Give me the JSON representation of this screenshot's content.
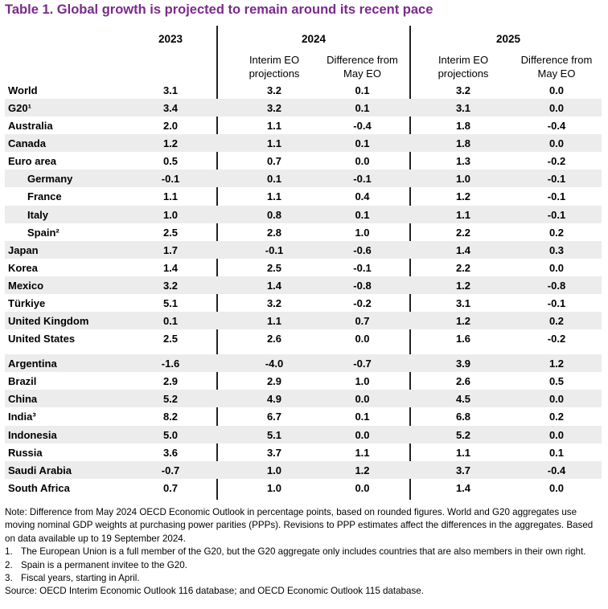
{
  "title": "Table 1. Global growth is projected to remain around its recent pace",
  "headers": {
    "y2023": "2023",
    "y2024": "2024",
    "y2025": "2025",
    "interim_2024": [
      "Interim EO",
      "projections"
    ],
    "diff_2024": [
      "Difference from",
      "May EO"
    ],
    "interim_2025": [
      "Interim EO",
      "projections"
    ],
    "diff_2025": [
      "Difference from",
      "May EO"
    ]
  },
  "rows": [
    {
      "name": "World",
      "v2023": "3.1",
      "i2024": "3.2",
      "d2024": "0.1",
      "i2025": "3.2",
      "d2025": "0.0"
    },
    {
      "name": "G20¹",
      "v2023": "3.4",
      "i2024": "3.2",
      "d2024": "0.1",
      "i2025": "3.1",
      "d2025": "0.0"
    },
    {
      "name": "Australia",
      "v2023": "2.0",
      "i2024": "1.1",
      "d2024": "-0.4",
      "i2025": "1.8",
      "d2025": "-0.4"
    },
    {
      "name": "Canada",
      "v2023": "1.2",
      "i2024": "1.1",
      "d2024": "0.1",
      "i2025": "1.8",
      "d2025": "0.0"
    },
    {
      "name": "Euro area",
      "v2023": "0.5",
      "i2024": "0.7",
      "d2024": "0.0",
      "i2025": "1.3",
      "d2025": "-0.2"
    },
    {
      "name": "Germany",
      "v2023": "-0.1",
      "i2024": "0.1",
      "d2024": "-0.1",
      "i2025": "1.0",
      "d2025": "-0.1"
    },
    {
      "name": "France",
      "v2023": "1.1",
      "i2024": "1.1",
      "d2024": "0.4",
      "i2025": "1.2",
      "d2025": "-0.1"
    },
    {
      "name": "Italy",
      "v2023": "1.0",
      "i2024": "0.8",
      "d2024": "0.1",
      "i2025": "1.1",
      "d2025": "-0.1"
    },
    {
      "name": "Spain²",
      "v2023": "2.5",
      "i2024": "2.8",
      "d2024": "1.0",
      "i2025": "2.2",
      "d2025": "0.2"
    },
    {
      "name": "Japan",
      "v2023": "1.7",
      "i2024": "-0.1",
      "d2024": "-0.6",
      "i2025": "1.4",
      "d2025": "0.3"
    },
    {
      "name": "Korea",
      "v2023": "1.4",
      "i2024": "2.5",
      "d2024": "-0.1",
      "i2025": "2.2",
      "d2025": "0.0"
    },
    {
      "name": "Mexico",
      "v2023": "3.2",
      "i2024": "1.4",
      "d2024": "-0.8",
      "i2025": "1.2",
      "d2025": "-0.8"
    },
    {
      "name": "Türkiye",
      "v2023": "5.1",
      "i2024": "3.2",
      "d2024": "-0.2",
      "i2025": "3.1",
      "d2025": "-0.1"
    },
    {
      "name": "United Kingdom",
      "v2023": "0.1",
      "i2024": "1.1",
      "d2024": "0.7",
      "i2025": "1.2",
      "d2025": "0.2"
    },
    {
      "name": "United States",
      "v2023": "2.5",
      "i2024": "2.6",
      "d2024": "0.0",
      "i2025": "1.6",
      "d2025": "-0.2"
    },
    {
      "name": "Argentina",
      "v2023": "-1.6",
      "i2024": "-4.0",
      "d2024": "-0.7",
      "i2025": "3.9",
      "d2025": "1.2"
    },
    {
      "name": "Brazil",
      "v2023": "2.9",
      "i2024": "2.9",
      "d2024": "1.0",
      "i2025": "2.6",
      "d2025": "0.5"
    },
    {
      "name": "China",
      "v2023": "5.2",
      "i2024": "4.9",
      "d2024": "0.0",
      "i2025": "4.5",
      "d2025": "0.0"
    },
    {
      "name": "India³",
      "v2023": "8.2",
      "i2024": "6.7",
      "d2024": "0.1",
      "i2025": "6.8",
      "d2025": "0.2"
    },
    {
      "name": "Indonesia",
      "v2023": "5.0",
      "i2024": "5.1",
      "d2024": "0.0",
      "i2025": "5.2",
      "d2025": "0.0"
    },
    {
      "name": "Russia",
      "v2023": "3.6",
      "i2024": "3.7",
      "d2024": "1.1",
      "i2025": "1.1",
      "d2025": "0.1"
    },
    {
      "name": "Saudi Arabia",
      "v2023": "-0.7",
      "i2024": "1.0",
      "d2024": "1.2",
      "i2025": "3.7",
      "d2025": "-0.4"
    },
    {
      "name": "South Africa",
      "v2023": "0.7",
      "i2024": "1.0",
      "d2024": "0.0",
      "i2025": "1.4",
      "d2025": "0.0"
    }
  ],
  "notes": {
    "lines": [
      "Note: Difference from May 2024 OECD Economic Outlook in percentage points, based on rounded figures. World and G20 aggregates use",
      "moving nominal GDP weights at purchasing power parities (PPPs). Revisions to PPP estimates affect the differences in the aggregates. Based",
      "on data available up to 19 September 2024."
    ],
    "footnotes": [
      {
        "num": "1.",
        "text": "The European Union is a full member of the G20, but the G20 aggregate only includes countries that are also members in their own right."
      },
      {
        "num": "2.",
        "text": "Spain is a permanent invitee to the G20."
      },
      {
        "num": "3.",
        "text": "Fiscal years, starting in April."
      }
    ],
    "source": "Source: OECD Interim Economic Outlook 116 database; and OECD Economic Outlook 115 database."
  }
}
